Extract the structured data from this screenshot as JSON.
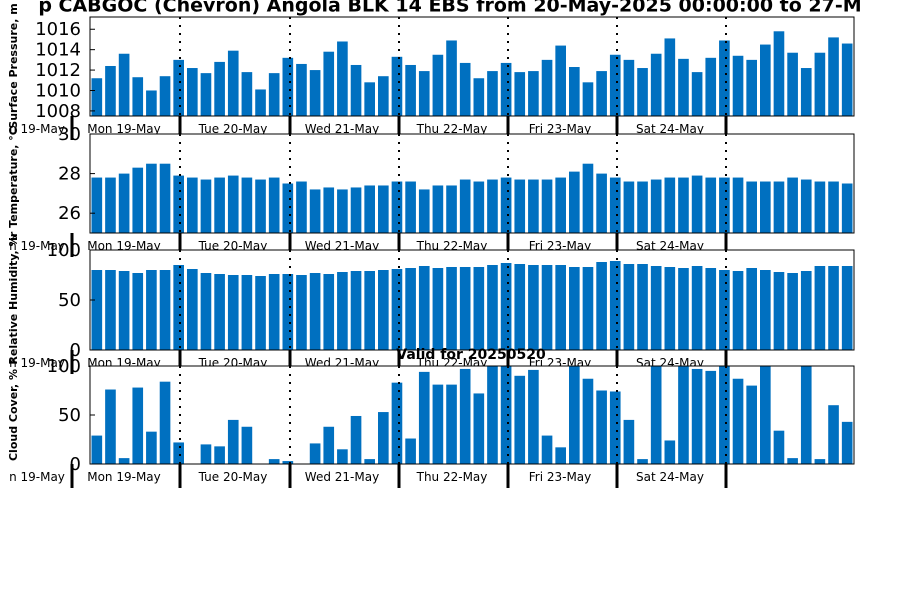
{
  "title": "p CABGOC (Chevron) Angola BLK 14 EBS from 20-May-2025 00:00:00 to 27-M",
  "subtitle": "Valid for 20250520",
  "bar_color": "#0070c0",
  "day_labels": [
    "n 19-May",
    "Mon 19-May",
    "Tue 20-May",
    "Wed 21-May",
    "Thu 22-May",
    "Fri 23-May",
    "Sat 24-May"
  ],
  "chart_data": [
    {
      "type": "bar",
      "ylabel": "Surface Pressure, m",
      "ylim": [
        1007.5,
        1017.2
      ],
      "yticks": [
        1008,
        1010,
        1012,
        1014,
        1016
      ],
      "values": [
        1011.2,
        1012.4,
        1013.6,
        1011.3,
        1010.0,
        1011.4,
        1013.0,
        1012.2,
        1011.7,
        1012.8,
        1013.9,
        1011.8,
        1010.1,
        1011.7,
        1013.2,
        1012.6,
        1012.0,
        1013.8,
        1014.8,
        1012.5,
        1010.8,
        1011.4,
        1013.3,
        1012.5,
        1011.9,
        1013.5,
        1014.9,
        1012.7,
        1011.2,
        1011.9,
        1012.7,
        1011.8,
        1011.9,
        1013.0,
        1014.4,
        1012.3,
        1010.8,
        1011.9,
        1013.5,
        1013.0,
        1012.2,
        1013.6,
        1015.1,
        1013.1,
        1011.8,
        1013.2,
        1014.9,
        1013.4,
        1013.0,
        1014.5,
        1015.8,
        1013.7,
        1012.2,
        1013.7,
        1015.2,
        1014.6
      ]
    },
    {
      "type": "bar",
      "ylabel": "ir Temperature, °C",
      "ylim": [
        25.0,
        30.0
      ],
      "yticks": [
        26,
        28,
        30
      ],
      "values": [
        27.8,
        27.8,
        28.0,
        28.3,
        28.5,
        28.5,
        27.9,
        27.8,
        27.7,
        27.8,
        27.9,
        27.8,
        27.7,
        27.8,
        27.5,
        27.6,
        27.2,
        27.3,
        27.2,
        27.3,
        27.4,
        27.4,
        27.6,
        27.6,
        27.2,
        27.4,
        27.4,
        27.7,
        27.6,
        27.7,
        27.8,
        27.7,
        27.7,
        27.7,
        27.8,
        28.1,
        28.5,
        28.0,
        27.8,
        27.6,
        27.6,
        27.7,
        27.8,
        27.8,
        27.9,
        27.8,
        27.8,
        27.8,
        27.6,
        27.6,
        27.6,
        27.8,
        27.7,
        27.6,
        27.6,
        27.5
      ]
    },
    {
      "type": "bar",
      "ylabel": "Relative Humidity, %",
      "ylim": [
        0,
        100
      ],
      "yticks": [
        0,
        50,
        100
      ],
      "values": [
        80,
        80,
        79,
        77,
        80,
        80,
        85,
        81,
        77,
        76,
        75,
        75,
        74,
        76,
        76,
        75,
        77,
        76,
        78,
        79,
        79,
        80,
        81,
        82,
        84,
        82,
        83,
        83,
        83,
        85,
        87,
        86,
        85,
        85,
        85,
        83,
        83,
        88,
        89,
        86,
        86,
        84,
        83,
        82,
        84,
        82,
        80,
        79,
        82,
        80,
        78,
        77,
        79,
        84,
        84,
        84
      ]
    },
    {
      "type": "bar",
      "ylabel": "Cloud Cover, %",
      "ylim": [
        0,
        100
      ],
      "yticks": [
        0,
        50,
        100
      ],
      "values": [
        29,
        76,
        6,
        78,
        33,
        84,
        22,
        0,
        20,
        18,
        45,
        38,
        0,
        5,
        3,
        0,
        21,
        38,
        15,
        49,
        5,
        53,
        83,
        26,
        94,
        81,
        81,
        97,
        72,
        100,
        100,
        90,
        96,
        29,
        17,
        100,
        87,
        75,
        74,
        45,
        5,
        100,
        24,
        100,
        97,
        95,
        100,
        87,
        80,
        100,
        34,
        6,
        100,
        5,
        60,
        43
      ]
    }
  ]
}
